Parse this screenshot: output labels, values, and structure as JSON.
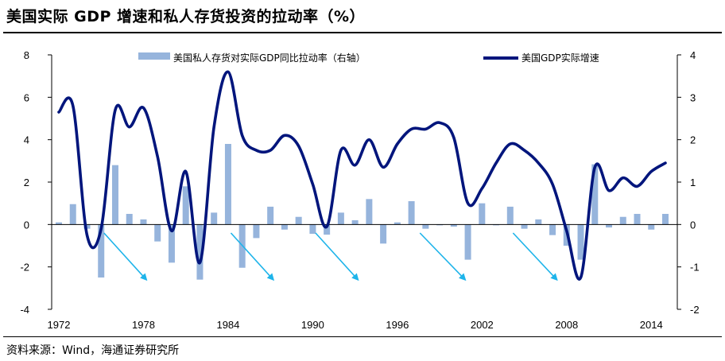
{
  "header": {
    "title": "美国实际 GDP 增速和私人存货投资的拉动率（%）"
  },
  "footer": {
    "source": "资料来源：Wind，海通证券研究所"
  },
  "chart_data": {
    "type": "bar+line",
    "title": "美国实际 GDP 增速和私人存货投资的拉动率（%）",
    "legend_position": "top",
    "grid": false,
    "x": [
      1972,
      1973,
      1974,
      1975,
      1976,
      1977,
      1978,
      1979,
      1980,
      1981,
      1982,
      1983,
      1984,
      1985,
      1986,
      1987,
      1988,
      1989,
      1990,
      1991,
      1992,
      1993,
      1994,
      1995,
      1996,
      1997,
      1998,
      1999,
      2000,
      2001,
      2002,
      2003,
      2004,
      2005,
      2006,
      2007,
      2008,
      2009,
      2010,
      2011,
      2012,
      2013,
      2014,
      2015
    ],
    "x_tick_labels": [
      "1972",
      "1978",
      "1984",
      "1990",
      "1996",
      "2002",
      "2008",
      "2014"
    ],
    "left_axis": {
      "range": [
        -4,
        8
      ],
      "ticks": [
        -4,
        -2,
        0,
        2,
        4,
        6,
        8
      ]
    },
    "right_axis": {
      "range": [
        -2,
        4
      ],
      "ticks": [
        -2,
        -1,
        0,
        1,
        2,
        3,
        4
      ]
    },
    "series": [
      {
        "name": "美国私人存货对实际GDP同比拉动率（右轴）",
        "type": "bar",
        "axis": "right",
        "color": "#96b4dc",
        "values": [
          0.05,
          0.48,
          -0.1,
          -1.25,
          1.4,
          0.25,
          0.12,
          -0.4,
          -0.9,
          0.9,
          -1.3,
          0.28,
          1.9,
          -1.02,
          -0.32,
          0.42,
          -0.12,
          0.18,
          -0.22,
          -0.24,
          0.28,
          0.1,
          0.6,
          -0.45,
          0.05,
          0.55,
          -0.1,
          -0.02,
          -0.05,
          -0.83,
          0.5,
          -0.02,
          0.42,
          -0.1,
          0.12,
          -0.25,
          -0.5,
          -0.83,
          1.42,
          -0.07,
          0.18,
          0.25,
          -0.12,
          0.25
        ]
      },
      {
        "name": "美国GDP实际增速",
        "type": "line",
        "axis": "left",
        "color": "#00157c",
        "values": [
          5.3,
          5.6,
          -0.5,
          -0.2,
          5.4,
          4.6,
          5.5,
          3.2,
          -0.3,
          2.5,
          -1.8,
          4.6,
          7.2,
          4.2,
          3.5,
          3.5,
          4.2,
          3.7,
          1.9,
          -0.1,
          3.5,
          2.8,
          4.0,
          2.7,
          3.8,
          4.5,
          4.5,
          4.8,
          4.1,
          1.0,
          1.7,
          2.9,
          3.8,
          3.5,
          2.9,
          1.9,
          -0.3,
          -2.5,
          2.7,
          1.6,
          2.2,
          1.8,
          2.5,
          2.9
        ]
      }
    ],
    "annotations": "light-blue downward arrows marking inventory drawdowns after 1975, 1984, 1990, 1997, 2004"
  }
}
